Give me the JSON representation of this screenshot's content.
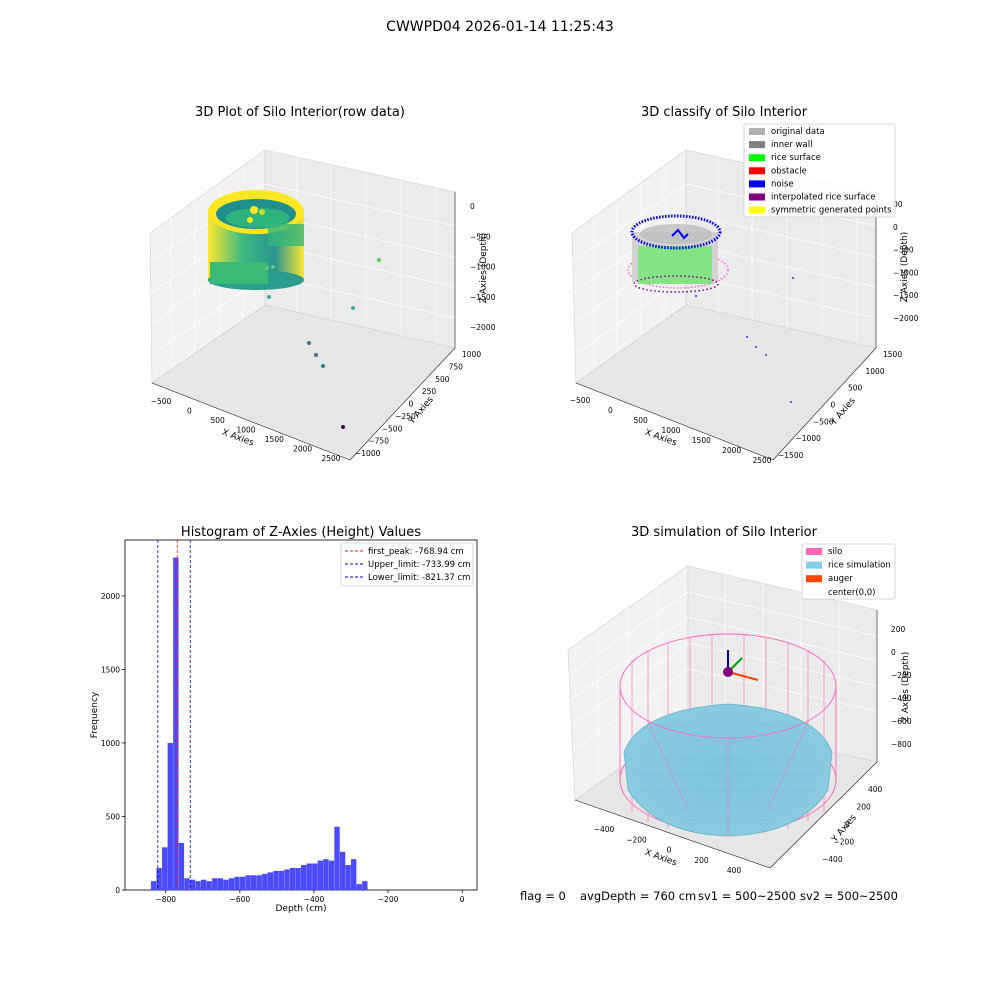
{
  "suptitle": "CWWPD04 2026-01-14 11:25:43",
  "footer": {
    "flag": "flag = 0",
    "avg_depth": "avgDepth = 760 cm",
    "sv1": "sv1 = 500~2500",
    "sv2": "sv2 = 500~2500"
  },
  "colors": {
    "hist_bar": "#4b4bfc",
    "peak_line": "#e41a1c",
    "limit_line": "#0000cc",
    "silo": "#ff69b4",
    "rice_simulation": "#87ceeb",
    "auger": "#ff4500"
  },
  "chart_data": [
    {
      "type": "scatter3d",
      "title": "3D Plot of Silo Interior(row data)",
      "xlabel": "X Axies",
      "ylabel": "Y Axies",
      "zlabel": "Z Axies (Depth)",
      "x_ticks": [
        "−500",
        "0",
        "500",
        "1000",
        "1500",
        "2000",
        "2500"
      ],
      "y_ticks": [
        "1000",
        "750",
        "500",
        "250",
        "0",
        "−250",
        "−500",
        "−750",
        "−1000"
      ],
      "z_ticks": [
        "0",
        "−500",
        "−1000",
        "−1500",
        "−2000"
      ],
      "colormap": "viridis",
      "outlier_points": [
        {
          "x": 1300,
          "y": 900,
          "z": -1000
        },
        {
          "x": 1450,
          "y": 500,
          "z": -1700
        },
        {
          "x": 900,
          "y": -100,
          "z": -2000
        },
        {
          "x": 1000,
          "y": -200,
          "z": -2100
        },
        {
          "x": 1100,
          "y": -200,
          "z": -2200
        },
        {
          "x": 2300,
          "y": -800,
          "z": -2300
        }
      ]
    },
    {
      "type": "scatter3d",
      "title": "3D classify of Silo Interior",
      "xlabel": "X Axies",
      "ylabel": "Y Axies",
      "zlabel": "Z Axies (Depth)",
      "x_ticks": [
        "−500",
        "0",
        "500",
        "1000",
        "1500",
        "2000",
        "2500"
      ],
      "y_ticks": [
        "1500",
        "1000",
        "500",
        "0",
        "−500",
        "−1000",
        "−1500"
      ],
      "z_ticks": [
        "00",
        "0",
        "−500",
        "−1000",
        "−1500",
        "−2000"
      ],
      "legend": [
        {
          "label": "original data",
          "color": "#b0b0b0"
        },
        {
          "label": "inner wall",
          "color": "#808080"
        },
        {
          "label": "rice surface",
          "color": "#00ff00"
        },
        {
          "label": "obstacle",
          "color": "#ff0000"
        },
        {
          "label": "noise",
          "color": "#0000ff"
        },
        {
          "label": "interpolated rice surface",
          "color": "#800080"
        },
        {
          "label": "symmetric generated points",
          "color": "#ffff00"
        }
      ],
      "legend_position": "upper right"
    },
    {
      "type": "bar",
      "title": "Histogram of Z-Axies (Height) Values",
      "xlabel": "Depth (cm)",
      "ylabel": "Frequency",
      "xlim": [
        -910,
        40
      ],
      "ylim": [
        0,
        2380
      ],
      "x_ticks": [
        -800,
        -600,
        -400,
        -200,
        0
      ],
      "x_tick_labels": [
        "−800",
        "−600",
        "−400",
        "−200",
        "0"
      ],
      "y_ticks": [
        0,
        500,
        1000,
        1500,
        2000
      ],
      "bin_start": -840,
      "bin_width": 15,
      "values": [
        60,
        150,
        290,
        1000,
        2260,
        320,
        80,
        70,
        60,
        70,
        60,
        80,
        80,
        70,
        80,
        90,
        90,
        100,
        100,
        100,
        110,
        120,
        130,
        130,
        140,
        150,
        150,
        170,
        180,
        180,
        200,
        210,
        200,
        430,
        260,
        170,
        210,
        40,
        60
      ],
      "vlines": [
        {
          "x": -768.94,
          "label": "first_peak: -768.94 cm",
          "style": "peak"
        },
        {
          "x": -733.99,
          "label": "Upper_limit: -733.99 cm",
          "style": "limit"
        },
        {
          "x": -821.37,
          "label": "Lower_limit: -821.37 cm",
          "style": "limit"
        }
      ],
      "legend_position": "upper right"
    },
    {
      "type": "surface3d",
      "title": "3D simulation of Silo Interior",
      "xlabel": "X Axies",
      "ylabel": "Y Axies",
      "zlabel": "Z Axies (Depth)",
      "x_ticks": [
        "−400",
        "−200",
        "0",
        "200",
        "400"
      ],
      "y_ticks": [
        "400",
        "200",
        "0",
        "−200",
        "−400"
      ],
      "z_ticks": [
        "200",
        "0",
        "−200",
        "−400",
        "−600",
        "−800"
      ],
      "legend": [
        {
          "label": "silo",
          "color": "#ff69b4"
        },
        {
          "label": "rice simulation",
          "color": "#87ceeb"
        },
        {
          "label": "auger",
          "color": "#ff4500"
        },
        {
          "label": "center(0,0)",
          "color": ""
        }
      ],
      "legend_position": "upper right"
    }
  ]
}
